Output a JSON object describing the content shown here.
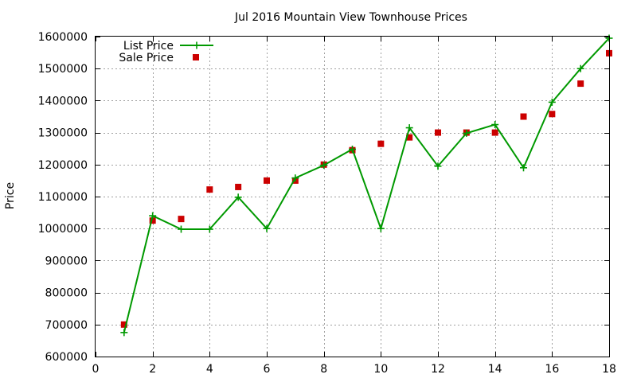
{
  "chart_data": {
    "type": "line",
    "title": "Jul 2016 Mountain View Townhouse Prices",
    "xlabel": "",
    "ylabel": "Price",
    "xlim": [
      0,
      18
    ],
    "ylim": [
      600000,
      1600000
    ],
    "x_ticks": [
      0,
      2,
      4,
      6,
      8,
      10,
      12,
      14,
      16,
      18
    ],
    "x_tick_labels": [
      "0",
      "2",
      "4",
      "6",
      "8",
      "10",
      "12",
      "14",
      "16",
      "18"
    ],
    "y_ticks": [
      600000,
      700000,
      800000,
      900000,
      1000000,
      1100000,
      1200000,
      1300000,
      1400000,
      1500000,
      1600000
    ],
    "y_tick_labels": [
      "600000",
      "700000",
      "800000",
      "900000",
      "1000000",
      "1100000",
      "1200000",
      "1300000",
      "1400000",
      "1500000",
      "1600000"
    ],
    "grid": true,
    "legend_position": "top-left",
    "x": [
      1,
      2,
      3,
      4,
      5,
      6,
      7,
      8,
      9,
      10,
      11,
      12,
      13,
      14,
      15,
      16,
      17,
      18
    ],
    "series": [
      {
        "name": "List Price",
        "style": "lines+points",
        "marker": "plus",
        "color": "#009900",
        "values": [
          675000,
          1040000,
          998000,
          998000,
          1098000,
          1000000,
          1158000,
          1198000,
          1248000,
          1000000,
          1315000,
          1195000,
          1298000,
          1325000,
          1190000,
          1395000,
          1500000,
          1595000
        ]
      },
      {
        "name": "Sale Price",
        "style": "points",
        "marker": "square",
        "color": "#cc0000",
        "values": [
          700000,
          1025000,
          1030000,
          1122000,
          1130000,
          1150000,
          1150000,
          1200000,
          1245000,
          1265000,
          1285000,
          1300000,
          1300000,
          1300000,
          1350000,
          1358000,
          1453000,
          1548000
        ]
      }
    ]
  }
}
